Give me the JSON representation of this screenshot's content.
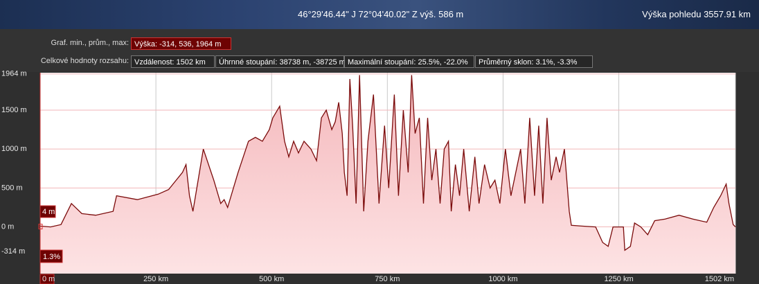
{
  "status_bar": {
    "coordinates": "46°29'46.44\" J  72°04'40.02\" Z výš.  586 m",
    "eye_altitude": "Výška pohledu  3557.91 km"
  },
  "statistics": {
    "graph_label": "Graf. min., prům., max:",
    "elevation": "Výška: -314, 536, 1964 m",
    "range_label": "Celkové hodnoty rozsahu:",
    "distance": "Vzdálenost: 1502 km",
    "gain_loss": "Úhrnné stoupání: 38738 m, -38725 m",
    "max_slope": "Maximální stoupání: 25.5%, -22.0%",
    "avg_slope": "Průměrný sklon: 3.1%, -3.3%"
  },
  "chart_data": {
    "type": "area",
    "color": "#7a0a0a",
    "fill": "#f4b7bb",
    "cursor_elevation": "4 m",
    "cursor_slope": "1.3%",
    "xlim": [
      0,
      1502
    ],
    "ylim": [
      -600,
      1980
    ],
    "xticks": [
      {
        "value": 0,
        "label": "0 m"
      },
      {
        "value": 250,
        "label": "250 km"
      },
      {
        "value": 500,
        "label": "500 km"
      },
      {
        "value": 750,
        "label": "750 km"
      },
      {
        "value": 1000,
        "label": "1000 km"
      },
      {
        "value": 1250,
        "label": "1250 km"
      },
      {
        "value": 1502,
        "label": "1502 km"
      }
    ],
    "yticks": [
      {
        "value": 1964,
        "label": "1964 m"
      },
      {
        "value": 1500,
        "label": "1500 m"
      },
      {
        "value": 1000,
        "label": "1000 m"
      },
      {
        "value": 500,
        "label": "500 m"
      },
      {
        "value": 0,
        "label": "0 m"
      },
      {
        "value": -314,
        "label": "-314 m"
      }
    ],
    "x": [
      0,
      22.5,
      45,
      67.5,
      90,
      120,
      157.5,
      165,
      210,
      255,
      277.5,
      307.5,
      315,
      322.5,
      330,
      352.5,
      375,
      390,
      397.5,
      405,
      427.5,
      450,
      465,
      480,
      495,
      502.5,
      517.5,
      528,
      537,
      547.5,
      558,
      570,
      585,
      597,
      607.5,
      618,
      630,
      637.5,
      645,
      652.5,
      657,
      663,
      669,
      675,
      682.5,
      690,
      699,
      708,
      720,
      732,
      744,
      753,
      765,
      774,
      784.5,
      795,
      802.5,
      810,
      819,
      828,
      837,
      846,
      855,
      864,
      873,
      882,
      888,
      897,
      906,
      915,
      927,
      939,
      948,
      960,
      972,
      982.5,
      993,
      1005,
      1017,
      1027.5,
      1038,
      1047,
      1057.5,
      1068,
      1077,
      1086,
      1095,
      1104,
      1114.5,
      1122,
      1132.5,
      1143,
      1147.5,
      1170,
      1200,
      1215,
      1227,
      1237.5,
      1260,
      1263,
      1275,
      1284,
      1297.5,
      1312.5,
      1327.5,
      1350,
      1380,
      1410,
      1440,
      1455,
      1470,
      1482,
      1488,
      1497,
      1502
    ],
    "values": [
      10,
      0,
      30,
      300,
      170,
      150,
      200,
      400,
      350,
      420,
      480,
      700,
      800,
      400,
      200,
      1000,
      600,
      300,
      350,
      250,
      700,
      1100,
      1150,
      1100,
      1250,
      1400,
      1550,
      1100,
      900,
      1100,
      950,
      1100,
      1000,
      850,
      1400,
      1500,
      1250,
      1350,
      1600,
      1200,
      700,
      400,
      1900,
      1300,
      300,
      1950,
      200,
      1100,
      1700,
      300,
      1300,
      500,
      1700,
      400,
      1500,
      700,
      1950,
      1200,
      1400,
      300,
      1400,
      600,
      1000,
      300,
      1000,
      1100,
      200,
      800,
      400,
      1000,
      200,
      900,
      300,
      800,
      500,
      600,
      300,
      1000,
      400,
      700,
      1000,
      300,
      1400,
      400,
      1300,
      300,
      1400,
      600,
      900,
      700,
      1000,
      200,
      20,
      10,
      0,
      -200,
      -250,
      0,
      0,
      -300,
      -250,
      50,
      0,
      -100,
      80,
      100,
      150,
      100,
      60,
      250,
      400,
      550,
      300,
      30,
      0
    ]
  }
}
